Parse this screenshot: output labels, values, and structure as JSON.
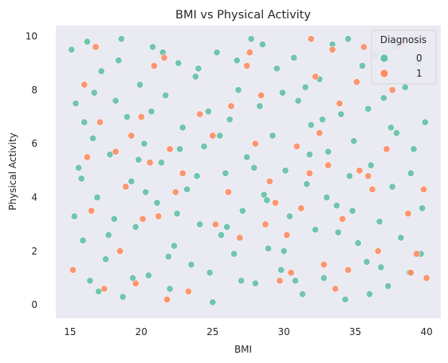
{
  "chart_data": {
    "type": "scatter",
    "title": "BMI vs Physical Activity",
    "xlabel": "BMI",
    "ylabel": "Physical Activity",
    "xlim": [
      14.0,
      41.0
    ],
    "ylim": [
      -0.5,
      10.4
    ],
    "xticks": [
      15,
      20,
      25,
      30,
      35,
      40
    ],
    "yticks": [
      0,
      2,
      4,
      6,
      8,
      10
    ],
    "grid": false,
    "background": "#eaeaf2",
    "legend": {
      "title": "Diagnosis",
      "placement": "top-right",
      "entries": [
        {
          "label": "0",
          "color": "#66c2a5"
        },
        {
          "label": "1",
          "color": "#fc8d62"
        }
      ]
    },
    "series": [
      {
        "name": "0",
        "color": "#66c2a5",
        "points": [
          [
            15.1,
            9.5
          ],
          [
            15.4,
            7.5
          ],
          [
            15.6,
            5.1
          ],
          [
            15.9,
            2.4
          ],
          [
            16.2,
            9.8
          ],
          [
            16.4,
            0.9
          ],
          [
            16.6,
            6.2
          ],
          [
            16.9,
            4.0
          ],
          [
            17.2,
            8.7
          ],
          [
            17.5,
            1.7
          ],
          [
            17.8,
            5.6
          ],
          [
            18.1,
            3.2
          ],
          [
            18.4,
            9.1
          ],
          [
            18.7,
            0.3
          ],
          [
            19.0,
            7.0
          ],
          [
            19.3,
            4.6
          ],
          [
            19.6,
            2.9
          ],
          [
            19.9,
            8.2
          ],
          [
            20.2,
            6.0
          ],
          [
            20.5,
            1.1
          ],
          [
            20.8,
            9.6
          ],
          [
            21.1,
            3.8
          ],
          [
            21.4,
            5.3
          ],
          [
            21.7,
            7.8
          ],
          [
            22.0,
            0.6
          ],
          [
            22.3,
            2.2
          ],
          [
            22.6,
            9.0
          ],
          [
            22.9,
            6.6
          ],
          [
            23.2,
            4.3
          ],
          [
            23.5,
            1.5
          ],
          [
            23.8,
            8.5
          ],
          [
            24.1,
            3.0
          ],
          [
            24.4,
            5.9
          ],
          [
            24.7,
            7.2
          ],
          [
            25.0,
            0.1
          ],
          [
            25.3,
            9.4
          ],
          [
            25.6,
            2.6
          ],
          [
            25.9,
            4.9
          ],
          [
            26.2,
            6.9
          ],
          [
            26.5,
            1.9
          ],
          [
            26.8,
            8.0
          ],
          [
            27.1,
            3.5
          ],
          [
            27.4,
            5.5
          ],
          [
            27.7,
            9.9
          ],
          [
            28.0,
            0.8
          ],
          [
            28.3,
            7.4
          ],
          [
            28.6,
            4.1
          ],
          [
            28.9,
            2.1
          ],
          [
            29.2,
            6.3
          ],
          [
            29.5,
            8.8
          ],
          [
            29.8,
            1.3
          ],
          [
            30.1,
            5.0
          ],
          [
            30.4,
            3.3
          ],
          [
            30.7,
            9.2
          ],
          [
            31.0,
            7.6
          ],
          [
            31.3,
            0.4
          ],
          [
            31.6,
            4.5
          ],
          [
            31.9,
            6.7
          ],
          [
            32.2,
            2.8
          ],
          [
            32.5,
            8.4
          ],
          [
            32.8,
            1.0
          ],
          [
            33.1,
            5.7
          ],
          [
            33.4,
            9.7
          ],
          [
            33.7,
            3.7
          ],
          [
            34.0,
            7.1
          ],
          [
            34.3,
            0.2
          ],
          [
            34.6,
            4.8
          ],
          [
            34.9,
            6.1
          ],
          [
            35.2,
            2.3
          ],
          [
            35.5,
            8.9
          ],
          [
            35.8,
            1.6
          ],
          [
            36.1,
            5.2
          ],
          [
            36.4,
            9.3
          ],
          [
            36.7,
            3.1
          ],
          [
            37.0,
            7.7
          ],
          [
            37.3,
            0.7
          ],
          [
            37.6,
            4.4
          ],
          [
            37.9,
            6.4
          ],
          [
            38.2,
            2.5
          ],
          [
            38.5,
            8.1
          ],
          [
            38.8,
            1.2
          ],
          [
            39.1,
            5.8
          ],
          [
            39.4,
            9.0
          ],
          [
            39.7,
            3.6
          ],
          [
            39.9,
            6.8
          ],
          [
            15.3,
            3.3
          ],
          [
            16.0,
            6.8
          ],
          [
            17.0,
            0.5
          ],
          [
            18.2,
            7.6
          ],
          [
            19.4,
            1.0
          ],
          [
            20.3,
            4.2
          ],
          [
            21.5,
            9.4
          ],
          [
            22.5,
            3.4
          ],
          [
            24.0,
            8.8
          ],
          [
            25.5,
            6.3
          ],
          [
            27.0,
            0.9
          ],
          [
            28.5,
            9.7
          ],
          [
            30.0,
            2.0
          ],
          [
            31.5,
            8.1
          ],
          [
            33.0,
            4.0
          ],
          [
            34.5,
            9.9
          ],
          [
            36.0,
            0.4
          ],
          [
            37.5,
            6.6
          ],
          [
            38.9,
            4.9
          ],
          [
            15.8,
            4.7
          ],
          [
            17.7,
            2.6
          ],
          [
            19.8,
            5.4
          ],
          [
            21.9,
            1.8
          ],
          [
            23.9,
            4.8
          ],
          [
            26.0,
            2.9
          ],
          [
            27.9,
            5.1
          ],
          [
            29.9,
            7.9
          ],
          [
            31.8,
            5.6
          ],
          [
            33.8,
            2.7
          ],
          [
            35.9,
            7.3
          ],
          [
            37.8,
            9.6
          ],
          [
            39.6,
            1.9
          ],
          [
            16.7,
            7.9
          ],
          [
            18.6,
            9.9
          ],
          [
            20.7,
            7.2
          ],
          [
            22.7,
            5.8
          ],
          [
            24.8,
            1.2
          ],
          [
            26.7,
            9.1
          ],
          [
            28.8,
            3.9
          ],
          [
            30.8,
            0.9
          ],
          [
            32.7,
            6.9
          ],
          [
            34.8,
            3.5
          ],
          [
            36.8,
            1.4
          ]
        ]
      },
      {
        "name": "1",
        "color": "#fc8d62",
        "points": [
          [
            15.2,
            1.3
          ],
          [
            16.0,
            8.2
          ],
          [
            16.2,
            5.5
          ],
          [
            16.5,
            3.5
          ],
          [
            16.8,
            9.6
          ],
          [
            17.1,
            6.8
          ],
          [
            17.4,
            0.6
          ],
          [
            18.2,
            5.7
          ],
          [
            18.5,
            2.0
          ],
          [
            18.9,
            4.4
          ],
          [
            19.3,
            6.3
          ],
          [
            19.6,
            0.8
          ],
          [
            20.0,
            7.0
          ],
          [
            20.1,
            3.2
          ],
          [
            20.6,
            5.3
          ],
          [
            20.9,
            8.9
          ],
          [
            21.2,
            3.3
          ],
          [
            21.6,
            9.2
          ],
          [
            21.8,
            0.2
          ],
          [
            22.0,
            5.8
          ],
          [
            22.4,
            4.2
          ],
          [
            22.9,
            4.9
          ],
          [
            23.3,
            0.5
          ],
          [
            24.1,
            7.1
          ],
          [
            25.0,
            6.3
          ],
          [
            25.2,
            3.0
          ],
          [
            26.1,
            4.2
          ],
          [
            26.3,
            7.4
          ],
          [
            26.9,
            2.5
          ],
          [
            27.4,
            8.9
          ],
          [
            27.6,
            9.4
          ],
          [
            28.0,
            6.0
          ],
          [
            28.4,
            7.8
          ],
          [
            28.7,
            3.0
          ],
          [
            29.0,
            4.6
          ],
          [
            29.4,
            3.8
          ],
          [
            29.7,
            0.9
          ],
          [
            30.2,
            2.6
          ],
          [
            30.5,
            1.2
          ],
          [
            30.9,
            5.9
          ],
          [
            31.2,
            3.6
          ],
          [
            31.8,
            4.9
          ],
          [
            31.9,
            9.9
          ],
          [
            32.2,
            8.5
          ],
          [
            32.5,
            6.4
          ],
          [
            32.8,
            1.5
          ],
          [
            33.1,
            5.2
          ],
          [
            33.4,
            9.5
          ],
          [
            33.6,
            0.6
          ],
          [
            33.9,
            7.5
          ],
          [
            34.1,
            3.2
          ],
          [
            34.5,
            1.3
          ],
          [
            35.1,
            8.3
          ],
          [
            35.3,
            5.0
          ],
          [
            35.6,
            9.6
          ],
          [
            35.9,
            4.8
          ],
          [
            36.2,
            4.3
          ],
          [
            36.6,
            2.0
          ],
          [
            37.2,
            5.8
          ],
          [
            37.6,
            8.0
          ],
          [
            38.3,
            9.7
          ],
          [
            38.7,
            3.4
          ],
          [
            38.9,
            1.2
          ],
          [
            39.3,
            1.9
          ],
          [
            39.8,
            4.3
          ],
          [
            40.0,
            1.0
          ]
        ]
      }
    ]
  }
}
